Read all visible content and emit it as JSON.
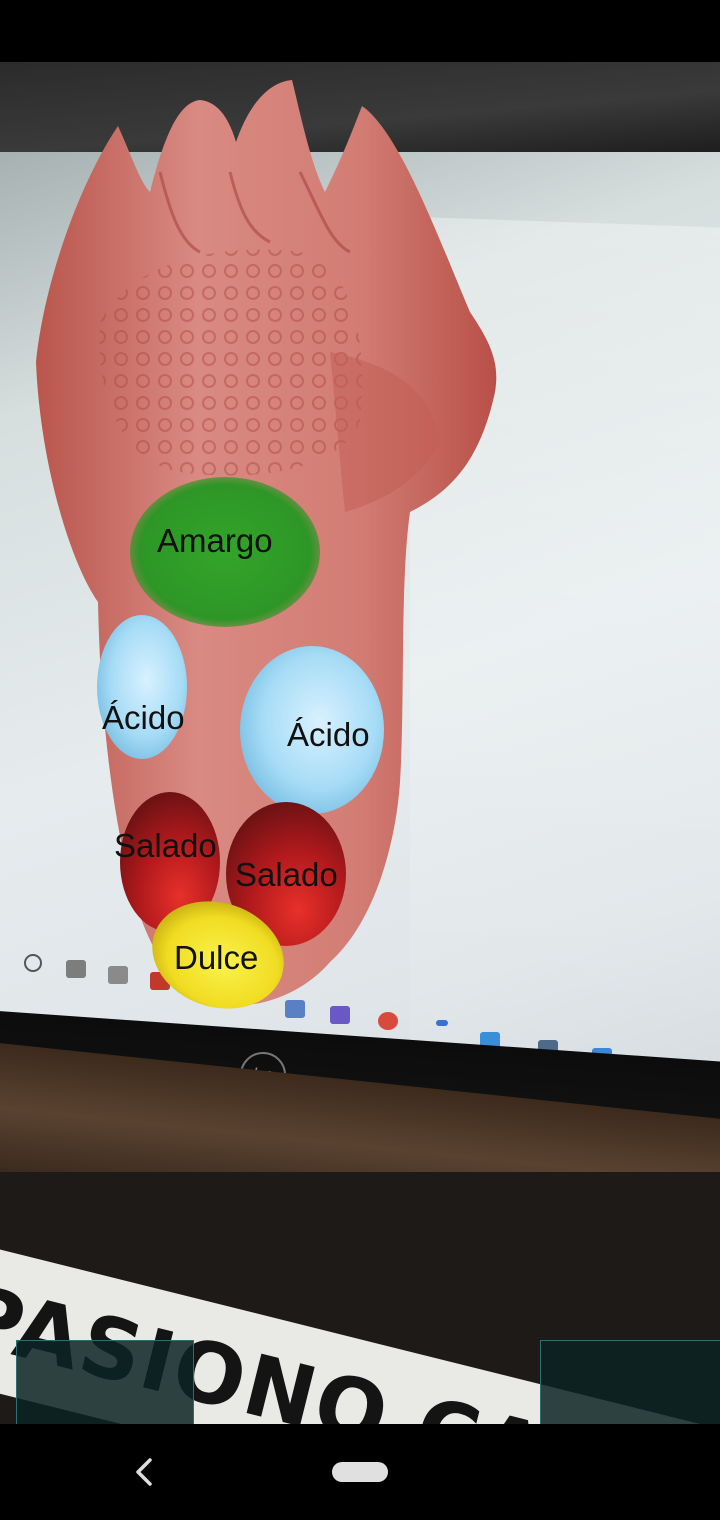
{
  "camera_scene": {
    "banner_text": "PASIONO CAMBIA DE PROF",
    "laptop_brand": "hp"
  },
  "tongue_model": {
    "zones": [
      {
        "id": "bitter",
        "label": "Amargo",
        "color": "#2e9e28"
      },
      {
        "id": "sour-left",
        "label": "Ácido",
        "color": "#a9dcf5"
      },
      {
        "id": "sour-right",
        "label": "Ácido",
        "color": "#a9dcf5"
      },
      {
        "id": "salty-left",
        "label": "Salado",
        "color": "#b0191c"
      },
      {
        "id": "salty-right",
        "label": "Salado",
        "color": "#b0191c"
      },
      {
        "id": "sweet",
        "label": "Dulce",
        "color": "#f2e22a"
      }
    ]
  },
  "navigation": {
    "back_icon": "chevron-left-icon",
    "home_icon": "home-pill-icon"
  }
}
